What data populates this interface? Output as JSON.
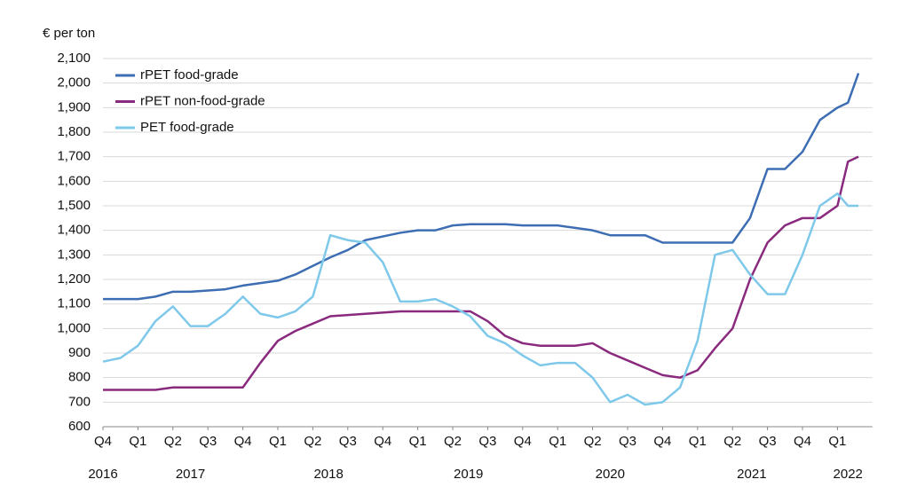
{
  "chart_data": {
    "type": "line",
    "y_label": "€ per ton",
    "x": [
      0,
      0.5,
      1,
      1.5,
      2,
      2.5,
      3,
      3.5,
      4,
      4.5,
      5,
      5.5,
      6,
      6.5,
      7,
      7.5,
      8,
      8.5,
      9,
      9.5,
      10,
      10.5,
      11,
      11.5,
      12,
      12.5,
      13,
      13.5,
      14,
      14.5,
      15,
      15.5,
      16,
      16.5,
      17,
      17.5,
      18,
      18.5,
      19,
      19.5,
      20,
      20.5,
      21,
      21.3,
      21.6
    ],
    "series": [
      {
        "name": "rPET food-grade",
        "color": "#3d6eb3",
        "values": [
          1120,
          1120,
          1120,
          1130,
          1150,
          1150,
          1155,
          1160,
          1175,
          1185,
          1195,
          1220,
          1255,
          1290,
          1320,
          1360,
          1375,
          1390,
          1400,
          1400,
          1420,
          1425,
          1425,
          1425,
          1420,
          1420,
          1420,
          1410,
          1400,
          1380,
          1380,
          1380,
          1350,
          1350,
          1350,
          1350,
          1350,
          1450,
          1650,
          1650,
          1720,
          1850,
          1900,
          1920,
          2040
        ]
      },
      {
        "name": "rPET non-food-grade",
        "color": "#8a2a7e",
        "values": [
          750,
          750,
          750,
          750,
          760,
          760,
          760,
          760,
          760,
          860,
          950,
          990,
          1020,
          1050,
          1055,
          1060,
          1065,
          1070,
          1070,
          1070,
          1070,
          1070,
          1030,
          970,
          940,
          930,
          930,
          930,
          940,
          900,
          870,
          840,
          810,
          800,
          830,
          920,
          1000,
          1200,
          1350,
          1420,
          1450,
          1450,
          1500,
          1680,
          1700
        ]
      },
      {
        "name": "PET food-grade",
        "color": "#7ec8ea",
        "values": [
          865,
          880,
          930,
          1030,
          1090,
          1010,
          1010,
          1060,
          1130,
          1060,
          1045,
          1070,
          1130,
          1380,
          1360,
          1350,
          1270,
          1110,
          1110,
          1120,
          1090,
          1050,
          970,
          940,
          890,
          850,
          860,
          860,
          800,
          700,
          730,
          690,
          700,
          760,
          950,
          1300,
          1320,
          1220,
          1140,
          1140,
          1300,
          1500,
          1550,
          1500,
          1500
        ]
      }
    ],
    "xlim": [
      0,
      22
    ],
    "xticks": [
      {
        "value": 0,
        "label": "Q4"
      },
      {
        "value": 1,
        "label": "Q1"
      },
      {
        "value": 2,
        "label": "Q2"
      },
      {
        "value": 3,
        "label": "Q3"
      },
      {
        "value": 4,
        "label": "Q4"
      },
      {
        "value": 5,
        "label": "Q1"
      },
      {
        "value": 6,
        "label": "Q2"
      },
      {
        "value": 7,
        "label": "Q3"
      },
      {
        "value": 8,
        "label": "Q4"
      },
      {
        "value": 9,
        "label": "Q1"
      },
      {
        "value": 10,
        "label": "Q2"
      },
      {
        "value": 11,
        "label": "Q3"
      },
      {
        "value": 12,
        "label": "Q4"
      },
      {
        "value": 13,
        "label": "Q1"
      },
      {
        "value": 14,
        "label": "Q2"
      },
      {
        "value": 15,
        "label": "Q3"
      },
      {
        "value": 16,
        "label": "Q4"
      },
      {
        "value": 17,
        "label": "Q1"
      },
      {
        "value": 18,
        "label": "Q2"
      },
      {
        "value": 19,
        "label": "Q3"
      },
      {
        "value": 20,
        "label": "Q4"
      },
      {
        "value": 21,
        "label": "Q1"
      }
    ],
    "year_ticks": [
      {
        "value": 0,
        "label": "2016"
      },
      {
        "value": 2.5,
        "label": "2017"
      },
      {
        "value": 6.45,
        "label": "2018"
      },
      {
        "value": 10.45,
        "label": "2019"
      },
      {
        "value": 14.5,
        "label": "2020"
      },
      {
        "value": 18.55,
        "label": "2021"
      },
      {
        "value": 21.3,
        "label": "2022"
      }
    ],
    "ylim": [
      600,
      2100
    ],
    "yticks": [
      600,
      700,
      800,
      900,
      {
        "value": 1000,
        "label": "1,000"
      },
      {
        "value": 1100,
        "label": "1,100"
      },
      {
        "value": 1200,
        "label": "1,200"
      },
      {
        "value": 1300,
        "label": "1,300"
      },
      {
        "value": 1400,
        "label": "1,400"
      },
      {
        "value": 1500,
        "label": "1,500"
      },
      {
        "value": 1600,
        "label": "1,600"
      },
      {
        "value": 1700,
        "label": "1,700"
      },
      {
        "value": 1800,
        "label": "1,800"
      },
      {
        "value": 1900,
        "label": "1,900"
      },
      {
        "value": 2000,
        "label": "2,000"
      },
      {
        "value": 2100,
        "label": "2,100"
      }
    ],
    "grid": true,
    "legend": "top-left"
  }
}
